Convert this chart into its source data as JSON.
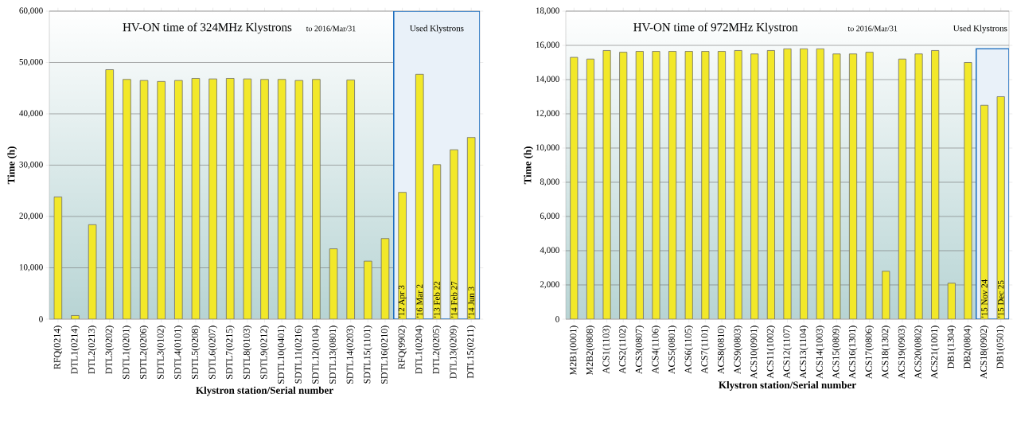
{
  "chart_data": [
    {
      "type": "bar",
      "title": "HV-ON time of  324MHz Klystrons",
      "subtitle": "to 2016/Mar/31",
      "xlabel": "Klystron station/Serial number",
      "ylabel": "Time (h)",
      "categories": [
        "RFQ(0214)",
        "DTL1(0214)",
        "DTL2(0213)",
        "DTL3(0202)",
        "SDTL1(0201)",
        "SDTL2(0206)",
        "SDTL3(0102)",
        "SDTL4(0101)",
        "SDTL5(0208)",
        "SDTL6(0207)",
        "SDTL7(0215)",
        "SDTL8(0103)",
        "SDTL9(0212)",
        "SDTL10(0401)",
        "SDTL11(0216)",
        "SDTL12(0104)",
        "SDTL13(0801)",
        "SDTL14(0203)",
        "SDTL15(1101)",
        "SDTL16(0210)",
        "RFQ(9902)",
        "DTL1(0204)",
        "DTL2(0205)",
        "DTL13(0209)",
        "DTL15(0211)"
      ],
      "values": [
        23800,
        700,
        18400,
        48600,
        46700,
        46500,
        46300,
        46500,
        46900,
        46800,
        46900,
        46800,
        46700,
        46700,
        46500,
        46700,
        13700,
        46600,
        11300,
        15700,
        24700,
        47700,
        30100,
        33000,
        35400
      ],
      "color": "#f2e829",
      "ylim": [
        0,
        60000
      ],
      "yticks": [
        0,
        {
          "value": 10000,
          "label": "10,000"
        },
        {
          "value": 20000,
          "label": "20,000"
        },
        {
          "value": 30000,
          "label": "30,000"
        },
        {
          "value": 40000,
          "label": "40,000"
        },
        {
          "value": 50000,
          "label": "50,000"
        },
        {
          "value": 60000,
          "label": "60,000"
        }
      ],
      "grid": "y",
      "bands": [
        {
          "axis": "x",
          "from": "RFQ(9902)",
          "to": "DTL15(0211)",
          "label": "Used Klystrons"
        }
      ],
      "annotations": [
        {
          "text": "'12 Apr 3",
          "x": "RFQ(9902)"
        },
        {
          "text": "'16 Mar 2",
          "x": "DTL1(0204)"
        },
        {
          "text": "'13 Feb 22",
          "x": "DTL2(0205)"
        },
        {
          "text": "'14 Feb 27",
          "x": "DTL13(0209)"
        },
        {
          "text": "'14 Jun 3",
          "x": "DTL15(0211)"
        }
      ]
    },
    {
      "type": "bar",
      "title": "HV-ON time of  972MHz Klystron",
      "subtitle": "to 2016/Mar/31",
      "xlabel": "Klystron station/Serial number",
      "ylabel": "Time (h)",
      "categories": [
        "M2B1(0001)",
        "M2B2(0808)",
        "ACS1(1103)",
        "ACS2(1102)",
        "ACS3(0807)",
        "ACS4(1106)",
        "ACS5(0801)",
        "ACS6(1105)",
        "ACS7(1101)",
        "ACS8(0810)",
        "ACS9(0803)",
        "ACS10(0901)",
        "ACS11(1002)",
        "ACS12(1107)",
        "ACS13(1104)",
        "ACS14(1003)",
        "ACS15(0809)",
        "ACS16(1301)",
        "ACS17(0806)",
        "ACS18(1302)",
        "ACS19(0903)",
        "ACS20(0802)",
        "ACS21(1001)",
        "DB1(1304)",
        "DB2(0804)",
        "ACS18(0902)",
        "DB1(0501)"
      ],
      "values": [
        15300,
        15200,
        15700,
        15600,
        15650,
        15650,
        15650,
        15650,
        15650,
        15650,
        15700,
        15500,
        15700,
        15800,
        15800,
        15800,
        15500,
        15500,
        15600,
        2800,
        15200,
        15500,
        15700,
        2100,
        15000,
        12500,
        13000
      ],
      "color": "#f2e829",
      "ylim": [
        0,
        18000
      ],
      "yticks": [
        0,
        {
          "value": 2000,
          "label": "2,000"
        },
        {
          "value": 4000,
          "label": "4,000"
        },
        {
          "value": 6000,
          "label": "6,000"
        },
        {
          "value": 8000,
          "label": "8,000"
        },
        {
          "value": 10000,
          "label": "10,000"
        },
        {
          "value": 12000,
          "label": "12,000"
        },
        {
          "value": 14000,
          "label": "14,000"
        },
        {
          "value": 16000,
          "label": "16,000"
        },
        {
          "value": 18000,
          "label": "18,000"
        }
      ],
      "grid": "y",
      "bands": [
        {
          "axis": "x",
          "from": "ACS18(0902)",
          "to": "DB1(0501)",
          "label": "Used Klystrons"
        }
      ],
      "annotations": [
        {
          "text": "'15 Nov 24",
          "x": "ACS18(0902)"
        },
        {
          "text": "'15 Dec 25",
          "x": "DB1(0501)"
        }
      ]
    }
  ]
}
